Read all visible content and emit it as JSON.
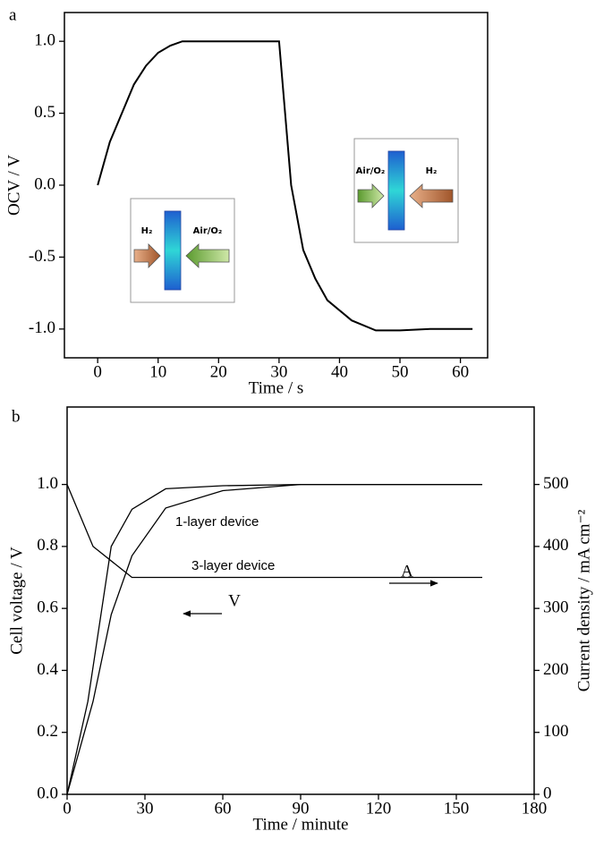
{
  "chart_data": [
    {
      "type": "line",
      "panel_label": "a",
      "x_label": "Time / s",
      "y_label": "OCV / V",
      "xlim": [
        -5.5,
        64.5
      ],
      "ylim": [
        -1.2,
        1.2
      ],
      "xticks": [
        0,
        10,
        20,
        30,
        40,
        50,
        60
      ],
      "yticks": [
        {
          "value": -1,
          "label": "-1.0"
        },
        -0.5,
        {
          "value": 0,
          "label": "0.0"
        },
        0.5,
        {
          "value": 1,
          "label": "1.0"
        }
      ],
      "series": [
        {
          "color": "#000000",
          "x": [
            0,
            2,
            4,
            6,
            8,
            10,
            12,
            14,
            30,
            32,
            34,
            36,
            38,
            42,
            46,
            50,
            55,
            62
          ],
          "values": [
            0,
            0.3,
            0.5,
            0.7,
            0.83,
            0.92,
            0.97,
            1.0,
            1.0,
            0.0,
            -0.45,
            -0.65,
            -0.8,
            -0.94,
            -1.01,
            -1.01,
            -1.0,
            -1.0
          ]
        }
      ],
      "insets": [
        {
          "left": "H₂",
          "right": "Air/O₂"
        },
        {
          "left": "Air/O₂",
          "right": "H₂"
        }
      ]
    },
    {
      "type": "line",
      "panel_label": "b",
      "x_label": "Time / minute",
      "y_label": "Cell voltage / V",
      "y2_label": "Current density / mA cm⁻²",
      "xlim": [
        0,
        180
      ],
      "ylim": [
        0,
        1.25
      ],
      "y2lim": [
        0,
        625
      ],
      "xticks": [
        0,
        30,
        60,
        90,
        120,
        150,
        180
      ],
      "yticks": [
        {
          "value": 0,
          "label": "0.0"
        },
        0.2,
        0.4,
        0.6,
        0.8,
        {
          "value": 1,
          "label": "1.0"
        }
      ],
      "y2ticks": [
        0,
        100,
        200,
        300,
        400,
        500
      ],
      "series": [
        {
          "name": "1-layer device",
          "axis": "y2",
          "color": "#000000",
          "x": [
            0,
            8,
            17,
            25,
            38,
            60,
            90,
            160
          ],
          "values": [
            0,
            150,
            400,
            460,
            493,
            498,
            500,
            500
          ]
        },
        {
          "name": "3-layer device",
          "axis": "y2",
          "color": "#000000",
          "x": [
            0,
            10,
            17,
            25,
            38,
            60,
            90,
            160
          ],
          "values": [
            0,
            150,
            290,
            385,
            462,
            490,
            500,
            500
          ]
        },
        {
          "name": "V",
          "color": "#000000",
          "x": [
            0,
            10,
            25,
            160
          ],
          "values": [
            1.0,
            0.8,
            0.7,
            0.7
          ]
        }
      ],
      "arrow_labels": [
        "A",
        "V"
      ]
    }
  ]
}
